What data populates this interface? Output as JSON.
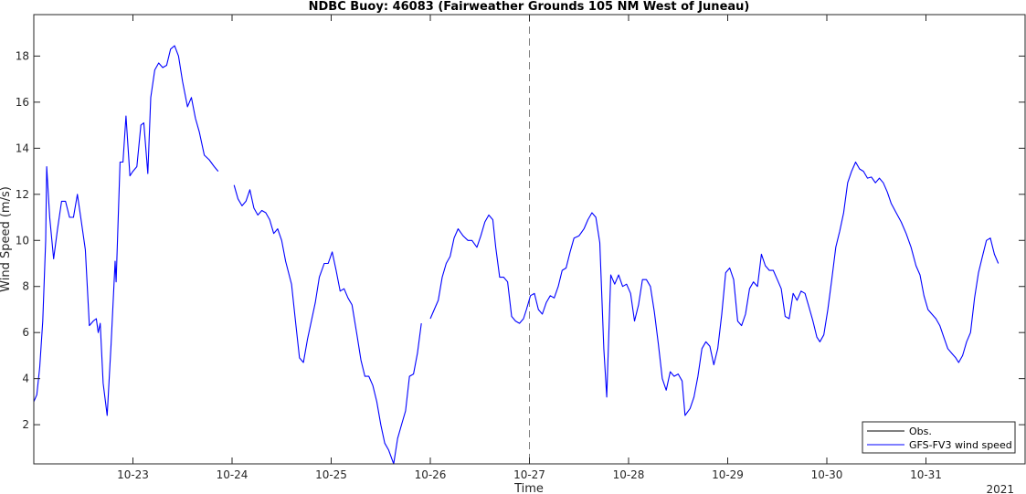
{
  "chart_data": {
    "type": "line",
    "title": "NDBC Buoy: 46083 (Fairweather Grounds 105 NM West of Juneau)",
    "xlabel": "Time",
    "ylabel": "Wind Speed (m/s)",
    "year_label": "2021",
    "x_ticks": [
      "10-23",
      "10-24",
      "10-25",
      "10-26",
      "10-27",
      "10-28",
      "10-29",
      "10-30",
      "10-31"
    ],
    "y_ticks": [
      2,
      4,
      6,
      8,
      10,
      12,
      14,
      16,
      18
    ],
    "ylim": [
      0.3,
      19.8
    ],
    "xlim": [
      22.0,
      32.0
    ],
    "vline_x": 27.0,
    "legend_position": "bottom-right",
    "series": [
      {
        "name": "Obs.",
        "color": "#000000",
        "segments": []
      },
      {
        "name": "GFS-FV3 wind speed",
        "color": "#0000ff",
        "segments": [
          [
            [
              22.0,
              3.0
            ],
            [
              22.03,
              3.3
            ],
            [
              22.06,
              4.5
            ],
            [
              22.09,
              6.5
            ],
            [
              22.12,
              10.0
            ],
            [
              22.13,
              13.2
            ],
            [
              22.16,
              11.0
            ],
            [
              22.2,
              9.2
            ],
            [
              22.24,
              10.5
            ],
            [
              22.28,
              11.7
            ],
            [
              22.32,
              11.7
            ],
            [
              22.36,
              11.0
            ],
            [
              22.4,
              11.0
            ],
            [
              22.44,
              12.0
            ],
            [
              22.48,
              10.8
            ],
            [
              22.52,
              9.6
            ],
            [
              22.56,
              6.3
            ],
            [
              22.6,
              6.5
            ],
            [
              22.63,
              6.6
            ],
            [
              22.65,
              6.0
            ],
            [
              22.67,
              6.4
            ],
            [
              22.7,
              3.8
            ],
            [
              22.74,
              2.4
            ],
            [
              22.78,
              5.5
            ],
            [
              22.82,
              9.1
            ],
            [
              22.83,
              8.2
            ],
            [
              22.87,
              13.4
            ],
            [
              22.9,
              13.4
            ],
            [
              22.93,
              15.4
            ],
            [
              22.97,
              12.8
            ],
            [
              23.0,
              13.0
            ],
            [
              23.04,
              13.2
            ],
            [
              23.08,
              15.0
            ],
            [
              23.11,
              15.1
            ],
            [
              23.15,
              12.9
            ],
            [
              23.18,
              16.2
            ],
            [
              23.22,
              17.4
            ],
            [
              23.26,
              17.7
            ],
            [
              23.3,
              17.5
            ],
            [
              23.34,
              17.6
            ],
            [
              23.38,
              18.3
            ],
            [
              23.42,
              18.45
            ],
            [
              23.46,
              18.0
            ],
            [
              23.5,
              16.9
            ],
            [
              23.55,
              15.8
            ],
            [
              23.59,
              16.2
            ],
            [
              23.63,
              15.3
            ],
            [
              23.67,
              14.7
            ],
            [
              23.72,
              13.7
            ],
            [
              23.77,
              13.5
            ],
            [
              23.82,
              13.2
            ],
            [
              23.86,
              13.0
            ]
          ],
          [
            [
              24.02,
              12.4
            ],
            [
              24.06,
              11.8
            ],
            [
              24.1,
              11.5
            ],
            [
              24.14,
              11.7
            ],
            [
              24.18,
              12.2
            ],
            [
              24.22,
              11.4
            ],
            [
              24.26,
              11.1
            ],
            [
              24.3,
              11.3
            ],
            [
              24.34,
              11.2
            ],
            [
              24.38,
              10.9
            ],
            [
              24.42,
              10.3
            ],
            [
              24.46,
              10.5
            ],
            [
              24.5,
              10.0
            ],
            [
              24.54,
              9.1
            ],
            [
              24.6,
              8.1
            ],
            [
              24.64,
              6.5
            ],
            [
              24.68,
              4.9
            ],
            [
              24.72,
              4.7
            ],
            [
              24.76,
              5.7
            ],
            [
              24.8,
              6.5
            ],
            [
              24.84,
              7.3
            ],
            [
              24.88,
              8.4
            ],
            [
              24.93,
              9.0
            ],
            [
              24.97,
              9.0
            ],
            [
              25.01,
              9.5
            ],
            [
              25.05,
              8.7
            ],
            [
              25.09,
              7.8
            ],
            [
              25.13,
              7.9
            ],
            [
              25.17,
              7.5
            ],
            [
              25.21,
              7.2
            ],
            [
              25.26,
              5.9
            ],
            [
              25.3,
              4.8
            ],
            [
              25.34,
              4.1
            ],
            [
              25.38,
              4.1
            ],
            [
              25.42,
              3.7
            ],
            [
              25.46,
              3.0
            ],
            [
              25.5,
              2.0
            ],
            [
              25.54,
              1.2
            ],
            [
              25.58,
              0.9
            ],
            [
              25.63,
              0.3
            ],
            [
              25.67,
              1.4
            ],
            [
              25.71,
              2.0
            ],
            [
              25.75,
              2.6
            ],
            [
              25.79,
              4.1
            ],
            [
              25.83,
              4.2
            ],
            [
              25.87,
              5.1
            ],
            [
              25.91,
              6.4
            ]
          ],
          [
            [
              26.0,
              6.6
            ],
            [
              26.04,
              7.0
            ],
            [
              26.08,
              7.4
            ],
            [
              26.12,
              8.4
            ],
            [
              26.16,
              9.0
            ],
            [
              26.2,
              9.3
            ],
            [
              26.24,
              10.1
            ],
            [
              26.28,
              10.5
            ],
            [
              26.33,
              10.2
            ],
            [
              26.38,
              10.0
            ],
            [
              26.42,
              10.0
            ],
            [
              26.47,
              9.7
            ],
            [
              26.51,
              10.2
            ],
            [
              26.55,
              10.8
            ],
            [
              26.59,
              11.1
            ],
            [
              26.63,
              10.9
            ],
            [
              26.66,
              9.7
            ],
            [
              26.7,
              8.4
            ],
            [
              26.74,
              8.4
            ],
            [
              26.78,
              8.2
            ],
            [
              26.82,
              6.7
            ],
            [
              26.86,
              6.5
            ],
            [
              26.9,
              6.4
            ],
            [
              26.94,
              6.6
            ],
            [
              26.97,
              7.0
            ],
            [
              27.01,
              7.6
            ],
            [
              27.05,
              7.7
            ],
            [
              27.09,
              7.0
            ],
            [
              27.13,
              6.8
            ],
            [
              27.17,
              7.3
            ],
            [
              27.21,
              7.6
            ],
            [
              27.25,
              7.5
            ],
            [
              27.29,
              8.0
            ],
            [
              27.33,
              8.7
            ],
            [
              27.37,
              8.8
            ],
            [
              27.41,
              9.5
            ],
            [
              27.45,
              10.1
            ],
            [
              27.5,
              10.2
            ],
            [
              27.55,
              10.5
            ],
            [
              27.59,
              10.9
            ],
            [
              27.63,
              11.2
            ],
            [
              27.67,
              11.0
            ],
            [
              27.71,
              9.9
            ],
            [
              27.75,
              5.3
            ],
            [
              27.78,
              3.2
            ],
            [
              27.82,
              8.5
            ],
            [
              27.86,
              8.1
            ],
            [
              27.9,
              8.5
            ],
            [
              27.94,
              8.0
            ],
            [
              27.98,
              8.1
            ],
            [
              28.02,
              7.7
            ],
            [
              28.06,
              6.5
            ],
            [
              28.1,
              7.2
            ],
            [
              28.14,
              8.3
            ],
            [
              28.18,
              8.3
            ],
            [
              28.22,
              8.0
            ],
            [
              28.26,
              6.9
            ],
            [
              28.3,
              5.5
            ],
            [
              28.34,
              4.0
            ],
            [
              28.38,
              3.5
            ],
            [
              28.42,
              4.3
            ],
            [
              28.46,
              4.1
            ],
            [
              28.5,
              4.2
            ],
            [
              28.54,
              3.9
            ],
            [
              28.57,
              2.4
            ],
            [
              28.62,
              2.7
            ],
            [
              28.66,
              3.2
            ],
            [
              28.7,
              4.1
            ],
            [
              28.74,
              5.3
            ],
            [
              28.78,
              5.6
            ],
            [
              28.82,
              5.4
            ],
            [
              28.86,
              4.6
            ],
            [
              28.9,
              5.3
            ],
            [
              28.94,
              6.8
            ],
            [
              28.98,
              8.6
            ],
            [
              29.02,
              8.8
            ],
            [
              29.06,
              8.3
            ],
            [
              29.1,
              6.5
            ],
            [
              29.14,
              6.3
            ],
            [
              29.18,
              6.8
            ],
            [
              29.22,
              7.9
            ],
            [
              29.26,
              8.2
            ],
            [
              29.3,
              8.0
            ],
            [
              29.34,
              9.4
            ],
            [
              29.38,
              8.9
            ],
            [
              29.42,
              8.7
            ],
            [
              29.46,
              8.7
            ],
            [
              29.5,
              8.3
            ],
            [
              29.54,
              7.9
            ],
            [
              29.58,
              6.7
            ],
            [
              29.62,
              6.6
            ],
            [
              29.66,
              7.7
            ],
            [
              29.7,
              7.4
            ],
            [
              29.74,
              7.8
            ],
            [
              29.78,
              7.7
            ],
            [
              29.82,
              7.1
            ],
            [
              29.86,
              6.5
            ],
            [
              29.9,
              5.8
            ],
            [
              29.93,
              5.6
            ],
            [
              29.97,
              5.9
            ],
            [
              30.01,
              7.0
            ],
            [
              30.05,
              8.3
            ],
            [
              30.09,
              9.7
            ],
            [
              30.13,
              10.4
            ],
            [
              30.17,
              11.2
            ],
            [
              30.21,
              12.5
            ],
            [
              30.25,
              13.0
            ],
            [
              30.29,
              13.4
            ],
            [
              30.33,
              13.1
            ],
            [
              30.37,
              13.0
            ],
            [
              30.41,
              12.7
            ],
            [
              30.45,
              12.75
            ],
            [
              30.49,
              12.5
            ],
            [
              30.53,
              12.7
            ],
            [
              30.57,
              12.5
            ],
            [
              30.61,
              12.1
            ],
            [
              30.65,
              11.6
            ],
            [
              30.7,
              11.2
            ],
            [
              30.75,
              10.8
            ],
            [
              30.8,
              10.3
            ],
            [
              30.85,
              9.7
            ],
            [
              30.9,
              8.9
            ],
            [
              30.94,
              8.5
            ],
            [
              30.98,
              7.6
            ],
            [
              31.02,
              7.0
            ],
            [
              31.06,
              6.8
            ],
            [
              31.1,
              6.6
            ],
            [
              31.14,
              6.3
            ],
            [
              31.18,
              5.8
            ],
            [
              31.22,
              5.3
            ],
            [
              31.26,
              5.1
            ],
            [
              31.3,
              4.9
            ],
            [
              31.33,
              4.7
            ],
            [
              31.37,
              5.0
            ],
            [
              31.41,
              5.6
            ],
            [
              31.45,
              6.0
            ],
            [
              31.49,
              7.5
            ],
            [
              31.53,
              8.6
            ],
            [
              31.57,
              9.3
            ],
            [
              31.61,
              10.0
            ],
            [
              31.65,
              10.1
            ],
            [
              31.69,
              9.4
            ],
            [
              31.73,
              9.0
            ]
          ]
        ]
      }
    ]
  }
}
